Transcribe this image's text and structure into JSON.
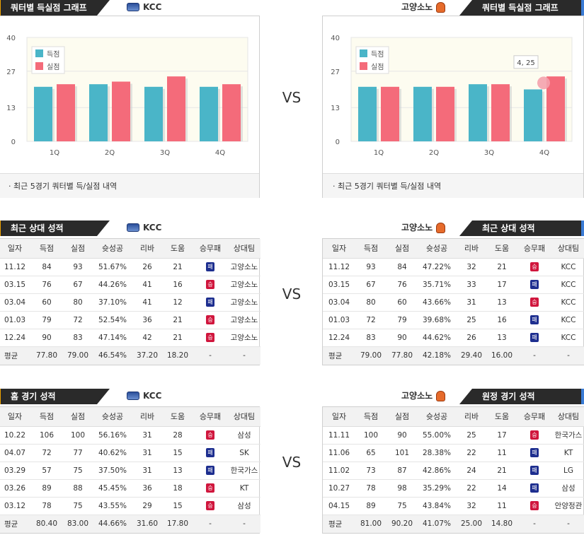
{
  "vs_label": "VS",
  "colors": {
    "score": "#4ab5c8",
    "loss": "#f46b7a",
    "win_badge": "#d0163d",
    "loss_badge": "#1d2e8f",
    "accent_left": "#f0a400",
    "accent_right": "#3a7bd5"
  },
  "charts": {
    "left": {
      "tab": "쿼터별 득실점 그래프",
      "team": "KCC",
      "note": "최근 5경기 쿼터별 득/실점 내역"
    },
    "right": {
      "tab": "쿼터별 득실점 그래프",
      "team": "고양소노",
      "note": "최근 5경기 쿼터별 득/실점 내역",
      "tooltip": "4, 25"
    }
  },
  "chart_data": [
    {
      "type": "bar",
      "categories": [
        "1Q",
        "2Q",
        "3Q",
        "4Q"
      ],
      "ylim": [
        0,
        40
      ],
      "yticks": [
        0,
        13,
        27,
        40
      ],
      "series": [
        {
          "name": "득점",
          "values": [
            21,
            22,
            21,
            21
          ]
        },
        {
          "name": "실점",
          "values": [
            22,
            23,
            25,
            22
          ]
        }
      ],
      "legend": "top-left"
    },
    {
      "type": "bar",
      "categories": [
        "1Q",
        "2Q",
        "3Q",
        "4Q"
      ],
      "ylim": [
        0,
        40
      ],
      "yticks": [
        0,
        13,
        27,
        40
      ],
      "series": [
        {
          "name": "득점",
          "values": [
            21,
            21,
            22,
            20
          ]
        },
        {
          "name": "실점",
          "values": [
            21,
            21,
            22,
            25
          ]
        }
      ],
      "legend": "top-left"
    }
  ],
  "headers": [
    "일자",
    "득점",
    "실점",
    "슛성공",
    "리바",
    "도움",
    "승무패",
    "상대팀"
  ],
  "win_label": "승",
  "loss_label": "패",
  "recent": {
    "left": {
      "tab": "최근 상대 성적",
      "team": "KCC",
      "rows": [
        [
          "11.12",
          "84",
          "93",
          "51.67%",
          "26",
          "21",
          "loss",
          "고양소노"
        ],
        [
          "03.15",
          "76",
          "67",
          "44.26%",
          "41",
          "16",
          "win",
          "고양소노"
        ],
        [
          "03.04",
          "60",
          "80",
          "37.10%",
          "41",
          "12",
          "loss",
          "고양소노"
        ],
        [
          "01.03",
          "79",
          "72",
          "52.54%",
          "36",
          "21",
          "win",
          "고양소노"
        ],
        [
          "12.24",
          "90",
          "83",
          "47.14%",
          "42",
          "21",
          "win",
          "고양소노"
        ]
      ],
      "avg": [
        "평균",
        "77.80",
        "79.00",
        "46.54%",
        "37.20",
        "18.20",
        "-",
        "-"
      ]
    },
    "right": {
      "tab": "최근 상대 성적",
      "team": "고양소노",
      "rows": [
        [
          "11.12",
          "93",
          "84",
          "47.22%",
          "32",
          "21",
          "win",
          "KCC"
        ],
        [
          "03.15",
          "67",
          "76",
          "35.71%",
          "33",
          "17",
          "loss",
          "KCC"
        ],
        [
          "03.04",
          "80",
          "60",
          "43.66%",
          "31",
          "13",
          "win",
          "KCC"
        ],
        [
          "01.03",
          "72",
          "79",
          "39.68%",
          "25",
          "16",
          "loss",
          "KCC"
        ],
        [
          "12.24",
          "83",
          "90",
          "44.62%",
          "26",
          "13",
          "loss",
          "KCC"
        ]
      ],
      "avg": [
        "평균",
        "79.00",
        "77.80",
        "42.18%",
        "29.40",
        "16.00",
        "-",
        "-"
      ]
    }
  },
  "games": {
    "left": {
      "tab": "홈 경기 성적",
      "team": "KCC",
      "rows": [
        [
          "10.22",
          "106",
          "100",
          "56.16%",
          "31",
          "28",
          "win",
          "삼성"
        ],
        [
          "04.07",
          "72",
          "77",
          "40.62%",
          "31",
          "15",
          "loss",
          "SK"
        ],
        [
          "03.29",
          "57",
          "75",
          "37.50%",
          "31",
          "13",
          "loss",
          "한국가스"
        ],
        [
          "03.26",
          "89",
          "88",
          "45.45%",
          "36",
          "18",
          "win",
          "KT"
        ],
        [
          "03.12",
          "78",
          "75",
          "43.55%",
          "29",
          "15",
          "win",
          "삼성"
        ]
      ],
      "avg": [
        "평균",
        "80.40",
        "83.00",
        "44.66%",
        "31.60",
        "17.80",
        "-",
        "-"
      ]
    },
    "right": {
      "tab": "원정 경기 성적",
      "team": "고양소노",
      "rows": [
        [
          "11.11",
          "100",
          "90",
          "55.00%",
          "25",
          "17",
          "win",
          "한국가스"
        ],
        [
          "11.06",
          "65",
          "101",
          "28.38%",
          "22",
          "11",
          "loss",
          "KT"
        ],
        [
          "11.02",
          "73",
          "87",
          "42.86%",
          "24",
          "21",
          "loss",
          "LG"
        ],
        [
          "10.27",
          "78",
          "98",
          "35.29%",
          "22",
          "14",
          "loss",
          "삼성"
        ],
        [
          "04.15",
          "89",
          "75",
          "43.84%",
          "32",
          "11",
          "win",
          "안양정관"
        ]
      ],
      "avg": [
        "평균",
        "81.00",
        "90.20",
        "41.07%",
        "25.00",
        "14.80",
        "-",
        "-"
      ]
    }
  }
}
